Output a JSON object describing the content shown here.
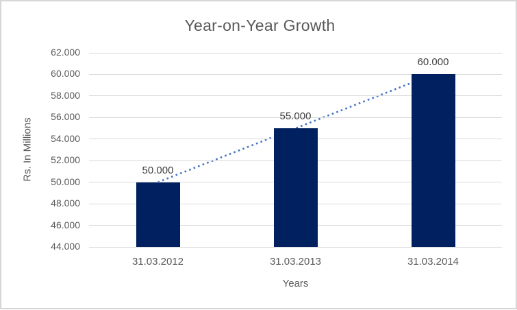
{
  "chart": {
    "title": "Year-on-Year Growth",
    "x_axis_title": "Years",
    "y_axis_title": "Rs. In Millions"
  },
  "chart_data": {
    "type": "bar",
    "title": "Year-on-Year Growth",
    "xlabel": "Years",
    "ylabel": "Rs. In Millions",
    "categories": [
      "31.03.2012",
      "31.03.2013",
      "31.03.2014"
    ],
    "values": [
      50000,
      55000,
      60000
    ],
    "data_labels": [
      "50.000",
      "55.000",
      "60.000"
    ],
    "ylim": [
      44000,
      62000
    ],
    "ytick_step": 2000,
    "ytick_labels": [
      "44.000",
      "46.000",
      "48.000",
      "50.000",
      "52.000",
      "54.000",
      "56.000",
      "58.000",
      "60.000",
      "62.000"
    ],
    "grid": true,
    "legend": "none",
    "trendline": {
      "type": "linear",
      "style": "dotted",
      "from_value": 50000,
      "to_value": 60000
    },
    "colors": {
      "bar": "#002060",
      "trendline": "#4472C4",
      "gridline": "#D9D9D9",
      "title_text": "#595959",
      "axis_text": "#595959",
      "data_label_text": "#404040",
      "border": "#D6D6D6",
      "background": "#FFFFFF"
    }
  }
}
